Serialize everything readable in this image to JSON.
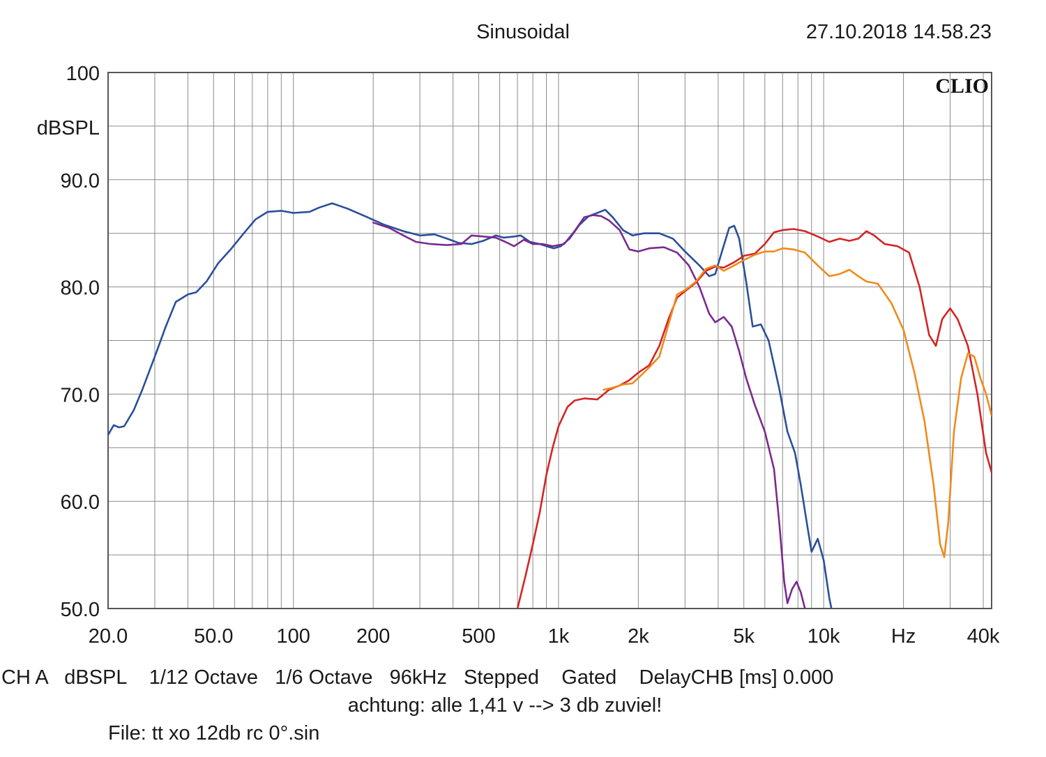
{
  "header": {
    "mode": "Sinusoidal",
    "timestamp": "27.10.2018 14.58.23",
    "brand": "CLIO"
  },
  "footer": {
    "status_line": "CH A   dBSPL    1/12 Octave   1/6 Octave   96kHz   Stepped    Gated    DelayCHB [ms] 0.000",
    "note": "achtung: alle 1,41 v --> 3 db zuviel!",
    "file": "File: tt xo 12db rc 0°.sin"
  },
  "chart_data": {
    "type": "line",
    "xscale": "log",
    "xlim": [
      20,
      43000
    ],
    "ylim": [
      50,
      100
    ],
    "ylabel": "dBSPL",
    "grid": true,
    "x_tick_labels": [
      {
        "value": 20,
        "label": "20.0"
      },
      {
        "value": 50,
        "label": "50.0"
      },
      {
        "value": 100,
        "label": "100"
      },
      {
        "value": 200,
        "label": "200"
      },
      {
        "value": 500,
        "label": "500"
      },
      {
        "value": 1000,
        "label": "1k"
      },
      {
        "value": 2000,
        "label": "2k"
      },
      {
        "value": 5000,
        "label": "5k"
      },
      {
        "value": 10000,
        "label": "10k"
      },
      {
        "value": 20000,
        "label": "Hz"
      },
      {
        "value": 40000,
        "label": "40k"
      }
    ],
    "y_tick_labels": [
      {
        "value": 100,
        "label": "100"
      },
      {
        "value": 90,
        "label": "90.0"
      },
      {
        "value": 80,
        "label": "80.0"
      },
      {
        "value": 70,
        "label": "70.0"
      },
      {
        "value": 60,
        "label": "60.0"
      },
      {
        "value": 50,
        "label": "50.0"
      }
    ],
    "series": [
      {
        "color": "#2a4f9a",
        "points": [
          [
            20,
            66.2
          ],
          [
            21,
            67.1
          ],
          [
            22,
            66.9
          ],
          [
            23,
            67.0
          ],
          [
            25,
            68.5
          ],
          [
            27,
            70.5
          ],
          [
            30,
            73.5
          ],
          [
            33,
            76.3
          ],
          [
            36,
            78.6
          ],
          [
            40,
            79.3
          ],
          [
            43,
            79.5
          ],
          [
            47,
            80.5
          ],
          [
            52,
            82.2
          ],
          [
            58,
            83.5
          ],
          [
            65,
            85.0
          ],
          [
            72,
            86.3
          ],
          [
            80,
            87.0
          ],
          [
            90,
            87.1
          ],
          [
            100,
            86.9
          ],
          [
            115,
            87.0
          ],
          [
            125,
            87.4
          ],
          [
            140,
            87.8
          ],
          [
            160,
            87.3
          ],
          [
            190,
            86.5
          ],
          [
            220,
            85.8
          ],
          [
            260,
            85.2
          ],
          [
            300,
            84.8
          ],
          [
            340,
            84.9
          ],
          [
            380,
            84.5
          ],
          [
            420,
            84.1
          ],
          [
            470,
            84.0
          ],
          [
            520,
            84.3
          ],
          [
            580,
            84.8
          ],
          [
            620,
            84.6
          ],
          [
            680,
            84.7
          ],
          [
            720,
            84.8
          ],
          [
            780,
            84.2
          ],
          [
            850,
            84.0
          ],
          [
            900,
            83.8
          ],
          [
            960,
            83.6
          ],
          [
            1020,
            83.8
          ],
          [
            1100,
            84.5
          ],
          [
            1200,
            85.8
          ],
          [
            1300,
            86.6
          ],
          [
            1400,
            86.9
          ],
          [
            1500,
            87.2
          ],
          [
            1600,
            86.5
          ],
          [
            1750,
            85.3
          ],
          [
            1900,
            84.8
          ],
          [
            2100,
            85.0
          ],
          [
            2400,
            85.0
          ],
          [
            2700,
            84.5
          ],
          [
            3000,
            83.3
          ],
          [
            3400,
            82.0
          ],
          [
            3700,
            81.0
          ],
          [
            3900,
            81.2
          ],
          [
            4100,
            83.0
          ],
          [
            4400,
            85.5
          ],
          [
            4600,
            85.7
          ],
          [
            4800,
            84.5
          ],
          [
            5100,
            80.5
          ],
          [
            5400,
            76.3
          ],
          [
            5800,
            76.5
          ],
          [
            6200,
            75.0
          ],
          [
            6800,
            70.5
          ],
          [
            7300,
            66.5
          ],
          [
            7800,
            64.5
          ],
          [
            8200,
            61.5
          ],
          [
            8700,
            57.5
          ],
          [
            9000,
            55.3
          ],
          [
            9500,
            56.5
          ],
          [
            10000,
            54.5
          ],
          [
            10500,
            51.0
          ],
          [
            10700,
            50.0
          ]
        ]
      },
      {
        "color": "#7b2a8e",
        "points": [
          [
            200,
            86.0
          ],
          [
            230,
            85.5
          ],
          [
            260,
            84.8
          ],
          [
            290,
            84.2
          ],
          [
            330,
            84.0
          ],
          [
            380,
            83.9
          ],
          [
            430,
            84.0
          ],
          [
            470,
            84.8
          ],
          [
            520,
            84.7
          ],
          [
            580,
            84.6
          ],
          [
            630,
            84.2
          ],
          [
            680,
            83.8
          ],
          [
            740,
            84.4
          ],
          [
            800,
            84.0
          ],
          [
            870,
            84.0
          ],
          [
            950,
            83.8
          ],
          [
            1050,
            84.0
          ],
          [
            1150,
            85.2
          ],
          [
            1250,
            86.5
          ],
          [
            1350,
            86.7
          ],
          [
            1450,
            86.6
          ],
          [
            1550,
            86.2
          ],
          [
            1700,
            85.3
          ],
          [
            1850,
            83.5
          ],
          [
            2000,
            83.3
          ],
          [
            2200,
            83.6
          ],
          [
            2500,
            83.7
          ],
          [
            2800,
            83.2
          ],
          [
            3100,
            82.0
          ],
          [
            3400,
            80.0
          ],
          [
            3700,
            77.5
          ],
          [
            3900,
            76.7
          ],
          [
            4200,
            77.2
          ],
          [
            4500,
            76.3
          ],
          [
            4800,
            74.0
          ],
          [
            5100,
            71.5
          ],
          [
            5500,
            69.0
          ],
          [
            6000,
            66.5
          ],
          [
            6500,
            63.0
          ],
          [
            6800,
            58.0
          ],
          [
            7100,
            52.5
          ],
          [
            7300,
            50.5
          ],
          [
            7600,
            51.8
          ],
          [
            7900,
            52.5
          ],
          [
            8200,
            51.5
          ],
          [
            8500,
            50.0
          ]
        ]
      },
      {
        "color": "#d42424",
        "points": [
          [
            700,
            50.0
          ],
          [
            750,
            53.0
          ],
          [
            800,
            56.0
          ],
          [
            850,
            59.0
          ],
          [
            900,
            62.5
          ],
          [
            950,
            65.0
          ],
          [
            1000,
            67.0
          ],
          [
            1080,
            68.8
          ],
          [
            1150,
            69.4
          ],
          [
            1250,
            69.6
          ],
          [
            1400,
            69.5
          ],
          [
            1550,
            70.4
          ],
          [
            1700,
            70.8
          ],
          [
            1850,
            71.3
          ],
          [
            2000,
            72.0
          ],
          [
            2200,
            72.7
          ],
          [
            2400,
            74.5
          ],
          [
            2600,
            77.0
          ],
          [
            2800,
            79.0
          ],
          [
            3000,
            79.6
          ],
          [
            3300,
            80.4
          ],
          [
            3600,
            81.5
          ],
          [
            3900,
            81.9
          ],
          [
            4200,
            81.8
          ],
          [
            4600,
            82.3
          ],
          [
            5000,
            82.9
          ],
          [
            5500,
            83.1
          ],
          [
            6000,
            84.0
          ],
          [
            6500,
            85.1
          ],
          [
            7000,
            85.3
          ],
          [
            7700,
            85.4
          ],
          [
            8500,
            85.2
          ],
          [
            9500,
            84.7
          ],
          [
            10500,
            84.2
          ],
          [
            11500,
            84.5
          ],
          [
            12500,
            84.3
          ],
          [
            13500,
            84.5
          ],
          [
            14500,
            85.2
          ],
          [
            15500,
            84.8
          ],
          [
            17000,
            84.0
          ],
          [
            19000,
            83.8
          ],
          [
            21000,
            83.2
          ],
          [
            23000,
            80.0
          ],
          [
            25000,
            75.5
          ],
          [
            26500,
            74.5
          ],
          [
            28000,
            77.0
          ],
          [
            30000,
            78.0
          ],
          [
            32000,
            77.0
          ],
          [
            35000,
            74.5
          ],
          [
            38000,
            70.0
          ],
          [
            41000,
            64.5
          ],
          [
            43000,
            62.7
          ]
        ]
      },
      {
        "color": "#f08a1c",
        "points": [
          [
            1480,
            70.4
          ],
          [
            1600,
            70.6
          ],
          [
            1750,
            70.9
          ],
          [
            1900,
            71.0
          ],
          [
            2000,
            71.5
          ],
          [
            2200,
            72.5
          ],
          [
            2400,
            73.5
          ],
          [
            2600,
            76.5
          ],
          [
            2800,
            79.3
          ],
          [
            3000,
            79.7
          ],
          [
            3300,
            80.5
          ],
          [
            3600,
            81.7
          ],
          [
            3900,
            82.0
          ],
          [
            4200,
            81.5
          ],
          [
            4600,
            82.0
          ],
          [
            5000,
            82.5
          ],
          [
            5500,
            83.0
          ],
          [
            6000,
            83.3
          ],
          [
            6500,
            83.3
          ],
          [
            7000,
            83.6
          ],
          [
            7700,
            83.5
          ],
          [
            8500,
            83.2
          ],
          [
            9500,
            82.0
          ],
          [
            10500,
            81.0
          ],
          [
            11500,
            81.2
          ],
          [
            12500,
            81.6
          ],
          [
            13500,
            81.0
          ],
          [
            14500,
            80.5
          ],
          [
            16000,
            80.3
          ],
          [
            18000,
            78.5
          ],
          [
            20000,
            76.0
          ],
          [
            22000,
            72.0
          ],
          [
            24000,
            67.5
          ],
          [
            26000,
            61.5
          ],
          [
            27500,
            56.0
          ],
          [
            28500,
            54.8
          ],
          [
            29500,
            58.0
          ],
          [
            31000,
            66.5
          ],
          [
            33000,
            71.5
          ],
          [
            35000,
            73.8
          ],
          [
            37000,
            73.5
          ],
          [
            39000,
            71.5
          ],
          [
            41000,
            70.0
          ],
          [
            43000,
            68.0
          ]
        ]
      }
    ]
  }
}
